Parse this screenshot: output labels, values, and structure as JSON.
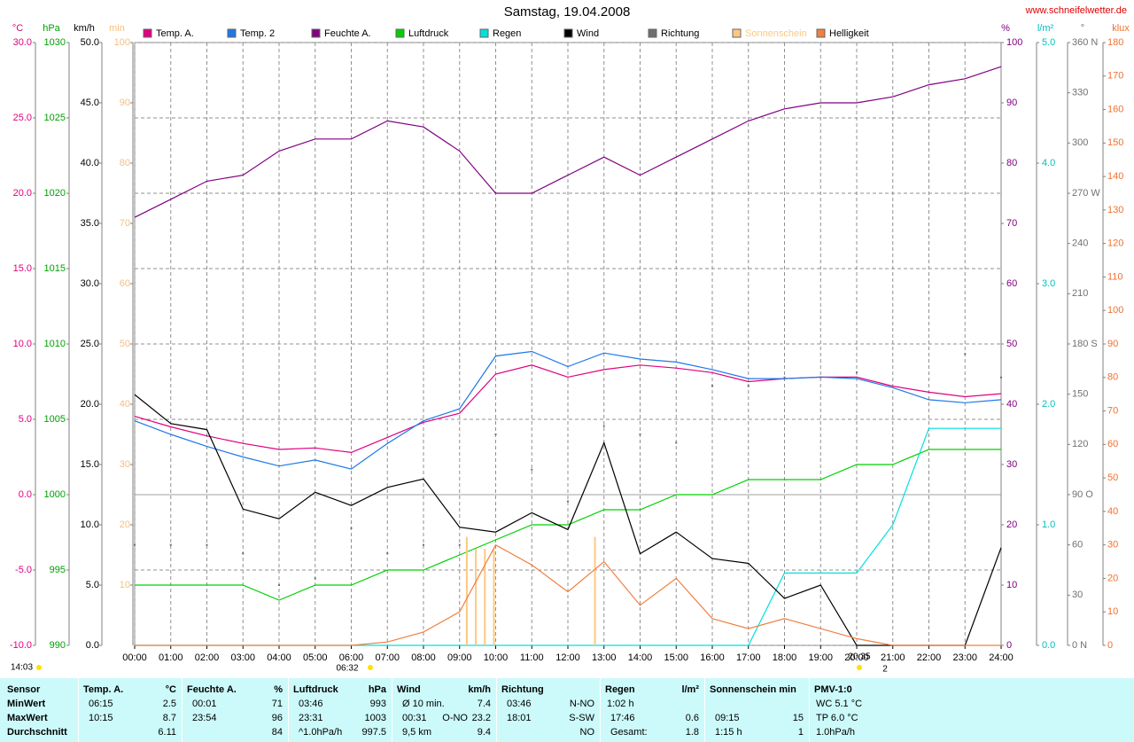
{
  "chart_data": {
    "type": "line",
    "title": "Samstag, 19.04.2008",
    "source": "www.schneifelwetter.de",
    "x": [
      0,
      1,
      2,
      3,
      4,
      5,
      6,
      7,
      8,
      9,
      10,
      11,
      12,
      13,
      14,
      15,
      16,
      17,
      18,
      19,
      20,
      21,
      22,
      23,
      24
    ],
    "xlim": [
      0,
      24
    ],
    "xticks": [
      {
        "value": 0,
        "label": "00:00"
      },
      {
        "value": 1,
        "label": "01:00"
      },
      {
        "value": 2,
        "label": "02:00"
      },
      {
        "value": 3,
        "label": "03:00"
      },
      {
        "value": 4,
        "label": "04:00"
      },
      {
        "value": 5,
        "label": "05:00"
      },
      {
        "value": 6,
        "label": "06:00"
      },
      {
        "value": 7,
        "label": "07:00"
      },
      {
        "value": 8,
        "label": "08:00"
      },
      {
        "value": 9,
        "label": "09:00"
      },
      {
        "value": 10,
        "label": "10:00"
      },
      {
        "value": 11,
        "label": "11:00"
      },
      {
        "value": 12,
        "label": "12:00"
      },
      {
        "value": 13,
        "label": "13:00"
      },
      {
        "value": 14,
        "label": "14:00"
      },
      {
        "value": 15,
        "label": "15:00"
      },
      {
        "value": 16,
        "label": "16:00"
      },
      {
        "value": 17,
        "label": "17:00"
      },
      {
        "value": 18,
        "label": "18:00"
      },
      {
        "value": 19,
        "label": "19:00"
      },
      {
        "value": 20,
        "label": "20:00"
      },
      {
        "value": 21,
        "label": "21:00"
      },
      {
        "value": 22,
        "label": "22:00"
      },
      {
        "value": 23,
        "label": "23:00"
      },
      {
        "value": 24,
        "label": "24:00"
      }
    ],
    "grid": true,
    "axes": [
      {
        "unit": "°C",
        "color": "#e0007f",
        "lim": [
          -10,
          30
        ],
        "ticks": [
          {
            "value": 30,
            "label": "30.0"
          },
          {
            "value": 25,
            "label": "25.0"
          },
          {
            "value": 20,
            "label": "20.0"
          },
          {
            "value": 15,
            "label": "15.0"
          },
          {
            "value": 10,
            "label": "10.0"
          },
          {
            "value": 5,
            "label": "5.0"
          },
          {
            "value": 0,
            "label": "0.0"
          },
          {
            "value": -5,
            "label": "-5.0"
          },
          {
            "value": -10,
            "label": "-10.0"
          }
        ]
      },
      {
        "unit": "hPa",
        "color": "#00a000",
        "lim": [
          990,
          1030
        ],
        "ticks": [
          1030,
          1025,
          1020,
          1015,
          1010,
          1005,
          1000,
          995,
          990
        ]
      },
      {
        "unit": "km/h",
        "color": "#000000",
        "lim": [
          0,
          50
        ],
        "ticks": [
          {
            "value": 50,
            "label": "50.0"
          },
          {
            "value": 45,
            "label": "45.0"
          },
          {
            "value": 40,
            "label": "40.0"
          },
          {
            "value": 35,
            "label": "35.0"
          },
          {
            "value": 30,
            "label": "30.0"
          },
          {
            "value": 25,
            "label": "25.0"
          },
          {
            "value": 20,
            "label": "20.0"
          },
          {
            "value": 15,
            "label": "15.0"
          },
          {
            "value": 10,
            "label": "10.0"
          },
          {
            "value": 5,
            "label": "5.0"
          },
          {
            "value": 0,
            "label": "0.0"
          }
        ]
      },
      {
        "unit": "min",
        "color": "#f5c080",
        "lim": [
          0,
          100
        ],
        "ticks": [
          100,
          90,
          80,
          70,
          60,
          50,
          40,
          30,
          20,
          10
        ]
      },
      {
        "unit": "%",
        "color": "#800080",
        "lim": [
          0,
          100
        ],
        "ticks": [
          100,
          90,
          80,
          70,
          60,
          50,
          40,
          30,
          20,
          10,
          0
        ]
      },
      {
        "unit": "l/m²",
        "color": "#00c0c0",
        "lim": [
          0,
          5
        ],
        "ticks": [
          {
            "value": 5,
            "label": "5.0"
          },
          {
            "value": 4,
            "label": "4.0"
          },
          {
            "value": 3,
            "label": "3.0"
          },
          {
            "value": 2,
            "label": "2.0"
          },
          {
            "value": 1,
            "label": "1.0"
          },
          {
            "value": 0,
            "label": "0.0"
          }
        ]
      },
      {
        "unit": "°",
        "color": "#707070",
        "lim": [
          0,
          360
        ],
        "ticks": [
          {
            "value": 360,
            "label": "360 N"
          },
          330,
          300,
          {
            "value": 270,
            "label": "270 W"
          },
          240,
          210,
          {
            "value": 180,
            "label": "180 S"
          },
          150,
          120,
          {
            "value": 90,
            "label": "90 O"
          },
          60,
          30,
          {
            "value": 0,
            "label": "0 N"
          }
        ]
      },
      {
        "unit": "klux",
        "color": "#f07030",
        "lim": [
          0,
          180
        ],
        "ticks": [
          180,
          170,
          160,
          150,
          140,
          130,
          120,
          110,
          100,
          90,
          80,
          70,
          60,
          50,
          40,
          30,
          20,
          10,
          0
        ]
      }
    ],
    "series": [
      {
        "name": "Temp. A.",
        "color": "#e0007f",
        "axis": 0,
        "style": "line",
        "values": [
          5.2,
          4.5,
          3.9,
          3.4,
          3.0,
          3.1,
          2.8,
          3.8,
          4.8,
          5.4,
          8.0,
          8.6,
          7.8,
          8.3,
          8.6,
          8.4,
          8.1,
          7.5,
          7.7,
          7.8,
          7.8,
          7.2,
          6.8,
          6.5,
          6.7
        ]
      },
      {
        "name": "Temp. 2",
        "color": "#1e78e6",
        "axis": 0,
        "style": "line",
        "values": [
          4.9,
          4.0,
          3.2,
          2.5,
          1.9,
          2.3,
          1.7,
          3.4,
          4.9,
          5.7,
          9.2,
          9.5,
          8.5,
          9.4,
          9.0,
          8.8,
          8.3,
          7.7,
          7.7,
          7.8,
          7.7,
          7.1,
          6.3,
          6.1,
          6.3
        ]
      },
      {
        "name": "Feuchte A.",
        "color": "#800080",
        "axis": 4,
        "style": "line",
        "values": [
          71,
          74,
          77,
          78,
          82,
          84,
          84,
          87,
          86,
          82,
          75,
          75,
          78,
          81,
          78,
          81,
          84,
          87,
          89,
          90,
          90,
          91,
          93,
          94,
          96
        ]
      },
      {
        "name": "Luftdruck",
        "color": "#00d000",
        "axis": 1,
        "style": "line",
        "values": [
          994,
          994,
          994,
          994,
          993,
          994,
          994,
          995,
          995,
          996,
          997,
          998,
          998,
          999,
          999,
          1000,
          1000,
          1001,
          1001,
          1001,
          1002,
          1002,
          1003,
          1003,
          1003
        ]
      },
      {
        "name": "Regen",
        "color": "#00e0e0",
        "axis": 5,
        "style": "line",
        "values": [
          0,
          0,
          0,
          0,
          0,
          0,
          0,
          0,
          0,
          0,
          0,
          0,
          0,
          0,
          0,
          0,
          0,
          0,
          0.6,
          0.6,
          0.6,
          1.0,
          1.8,
          1.8,
          1.8
        ]
      },
      {
        "name": "Wind",
        "color": "#000000",
        "axis": 2,
        "style": "line",
        "values": [
          20.8,
          18.4,
          17.9,
          11.3,
          10.5,
          12.7,
          11.6,
          13.1,
          13.8,
          9.8,
          9.4,
          11.0,
          9.6,
          16.8,
          7.6,
          9.4,
          7.2,
          6.8,
          3.9,
          5.0,
          0,
          0,
          0,
          0,
          8.1
        ]
      },
      {
        "name": "Richtung",
        "color": "#707070",
        "axis": 6,
        "style": "dots",
        "values": [
          60,
          60,
          60,
          55,
          36,
          40,
          70,
          55,
          60,
          60,
          126,
          105,
          86,
          131,
          126,
          121,
          155,
          155,
          160,
          160,
          163,
          null,
          null,
          174,
          160
        ]
      },
      {
        "name": "Sonnenschein",
        "color": "#ffc880",
        "axis": 3,
        "style": "bars",
        "x": [
          9.2,
          9.45,
          9.7,
          9.95,
          12.75
        ],
        "values": [
          18,
          16,
          16,
          16,
          18
        ]
      },
      {
        "name": "Helligkeit",
        "color": "#f08040",
        "axis": 7,
        "style": "line",
        "values": [
          0,
          0,
          0,
          0,
          0,
          0,
          0,
          1,
          4,
          10,
          30,
          24,
          16,
          25,
          12,
          20,
          8,
          5,
          8,
          5,
          2,
          0,
          0,
          0,
          0
        ]
      }
    ],
    "annotations": [
      "14:03",
      "06:32",
      "20:35",
      "2"
    ]
  },
  "table": {
    "row_labels": [
      "Sensor",
      "MinWert",
      "MaxWert",
      "Durchschnitt"
    ],
    "groups": [
      {
        "title": "Temp. A.",
        "unit": "°C",
        "rows": [
          [
            "06:15",
            "2.5"
          ],
          [
            "10:15",
            "8.7"
          ],
          [
            "6.11"
          ]
        ]
      },
      {
        "title": "Feuchte A.",
        "unit": "%",
        "rows": [
          [
            "00:01",
            "71"
          ],
          [
            "23:54",
            "96"
          ],
          [
            "84"
          ]
        ]
      },
      {
        "title": "Luftdruck",
        "unit": "hPa",
        "rows": [
          [
            "03:46",
            "993"
          ],
          [
            "23:31",
            "1003"
          ],
          [
            "^1.0hPa/h",
            "997.5"
          ]
        ]
      },
      {
        "title": "Wind",
        "unit": "km/h",
        "rows": [
          [
            "Ø 10 min.",
            "7.4"
          ],
          [
            "00:31",
            "O-NO",
            "23.2"
          ],
          [
            "9,5 km",
            "9.4"
          ]
        ]
      },
      {
        "title": "Richtung",
        "rows": [
          [
            "03:46",
            "N-NO"
          ],
          [
            "18:01",
            "S-SW"
          ],
          [
            "NO"
          ]
        ]
      },
      {
        "title": "Regen",
        "unit": "l/m²",
        "rows": [
          [
            "1:02 h"
          ],
          [
            "17:46",
            "0.6"
          ],
          [
            "Gesamt:",
            "1.8"
          ]
        ]
      },
      {
        "title": "Sonnenschein min",
        "rows": [
          [],
          [
            "09:15",
            "15"
          ],
          [
            "1:15 h",
            "1"
          ]
        ]
      },
      {
        "title": "PMV-1:0",
        "rows": [
          [
            "WC 5.1 °C"
          ],
          [
            "TP 6.0 °C"
          ],
          [
            "1.0hPa/h"
          ]
        ]
      }
    ]
  }
}
